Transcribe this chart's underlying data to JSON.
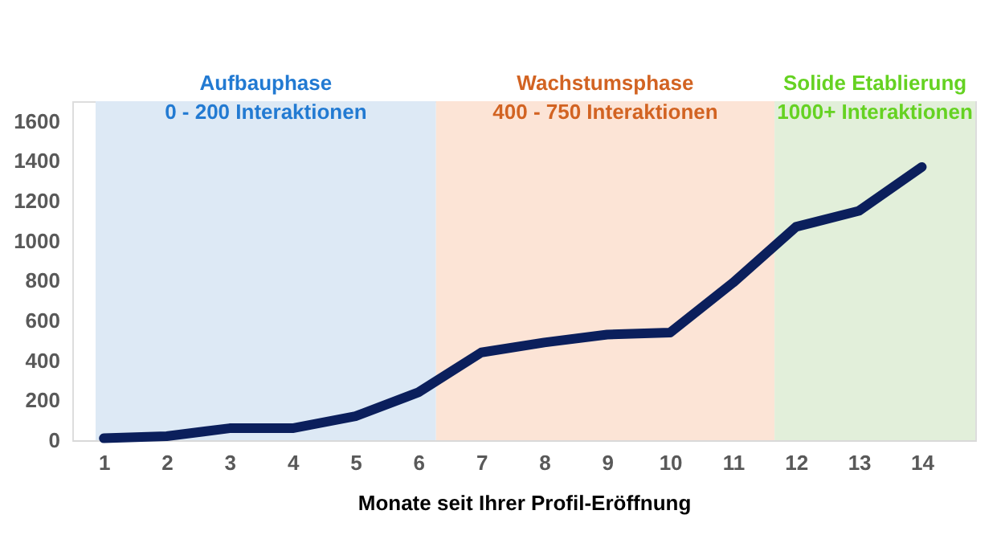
{
  "chart_data": {
    "type": "line",
    "xlabel": "Monate seit Ihrer Profil-Eröffnung",
    "x": [
      1,
      2,
      3,
      4,
      5,
      6,
      7,
      8,
      9,
      10,
      11,
      12,
      13,
      14
    ],
    "series": [
      {
        "color": "#0b1f5c",
        "values": [
          10,
          20,
          60,
          60,
          120,
          240,
          440,
          490,
          530,
          540,
          790,
          1070,
          1150,
          1370
        ]
      }
    ],
    "xlim": [
      0.5,
      14.85
    ],
    "xticks": [
      1,
      2,
      3,
      4,
      5,
      6,
      7,
      8,
      9,
      10,
      11,
      12,
      13,
      14
    ],
    "ylim": [
      0,
      1700
    ],
    "yticks": [
      0,
      200,
      400,
      600,
      800,
      1000,
      1200,
      1400,
      1600
    ],
    "bands": [
      {
        "axis": "x",
        "from": 0.87,
        "to": 6.28,
        "label": "Aufbauphase\n0 - 200 Interaktionen",
        "color": "#dde9f5"
      },
      {
        "axis": "x",
        "from": 6.28,
        "to": 11.66,
        "label": "Wachstumsphase\n400 - 750 Interaktionen",
        "color": "#fce4d6"
      },
      {
        "axis": "x",
        "from": 11.66,
        "to": 14.85,
        "label": "Solide Etablierung\n1000+ Interaktionen",
        "color": "#e2efda"
      }
    ],
    "grid": false,
    "marker": "none",
    "line_style": "solid"
  }
}
